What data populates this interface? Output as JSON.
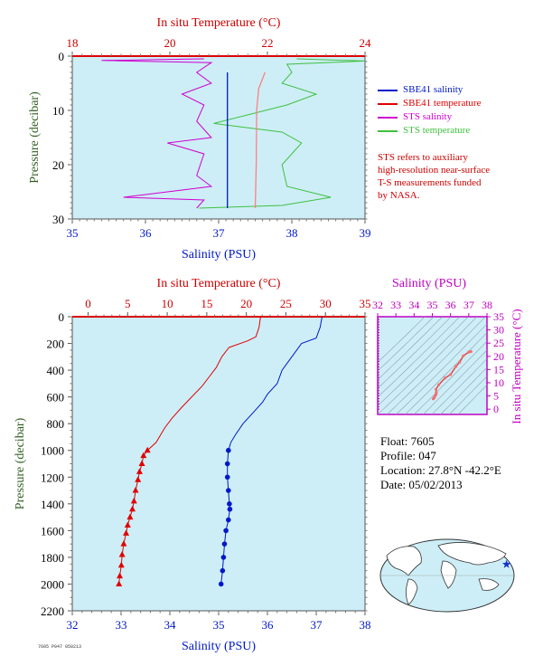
{
  "colors": {
    "panel_bg": "#cdeef7",
    "temp": "#e00000",
    "sal": "#0018c8",
    "sts_sal": "#d000d0",
    "sts_temp": "#40c040",
    "pres_label": "#2e7d32",
    "ts_axis": "#c000c0"
  },
  "top_panel": {
    "top_axis_label": "In situ Temperature (°C)",
    "bottom_axis_label": "Salinity (PSU)",
    "left_axis_label": "Pressure (decibar)",
    "temp_ticks": [
      "18",
      "20",
      "22",
      "24"
    ],
    "sal_ticks": [
      "35",
      "36",
      "37",
      "38",
      "39"
    ],
    "pres_ticks": [
      "0",
      "10",
      "20",
      "30"
    ]
  },
  "legend": [
    {
      "label": "SBE41 salinity",
      "color": "#0018c8"
    },
    {
      "label": "SBE41 temperature",
      "color": "#e00000"
    },
    {
      "label": "STS salinity",
      "color": "#d000d0"
    },
    {
      "label": "STS temperature",
      "color": "#40c040"
    }
  ],
  "note_lines": [
    "STS refers to auxiliary",
    "high-resolution near-surface",
    "T-S measurements funded",
    "by NASA."
  ],
  "main_panel": {
    "top_axis_label": "In situ Temperature (°C)",
    "bottom_axis_label": "Salinity (PSU)",
    "left_axis_label": "Pressure (decibar)",
    "temp_ticks": [
      "0",
      "5",
      "10",
      "15",
      "20",
      "25",
      "30",
      "35"
    ],
    "sal_ticks": [
      "32",
      "33",
      "34",
      "35",
      "36",
      "37",
      "38"
    ],
    "pres_ticks": [
      "0",
      "200",
      "400",
      "600",
      "800",
      "1000",
      "1200",
      "1400",
      "1600",
      "1800",
      "2000",
      "2200"
    ]
  },
  "ts_panel": {
    "top_axis_label": "Salinity (PSU)",
    "right_axis_label": "In situ Temperature (°C)",
    "sal_ticks": [
      "32",
      "33",
      "34",
      "35",
      "36",
      "37",
      "38"
    ],
    "temp_ticks": [
      "0",
      "5",
      "10",
      "15",
      "20",
      "25",
      "30",
      "35"
    ]
  },
  "info": {
    "float_line": "Float:  7605",
    "profile_line": "Profile:  047",
    "location_line": "Location:  27.8°N  -42.2°E",
    "date_line": "Date:  05/02/2013"
  },
  "footer_code": "7605 P047 050213",
  "chart_data": [
    {
      "type": "line",
      "title": "",
      "x_top_label": "In situ Temperature (°C)",
      "x_top_range": [
        18,
        24
      ],
      "x_bottom_label": "Salinity (PSU)",
      "x_bottom_range": [
        35,
        39
      ],
      "ylabel": "Pressure (decibar)",
      "ylim": [
        30,
        0
      ],
      "series": [
        {
          "name": "SBE41 salinity",
          "axis": "salinity",
          "points": [
            [
              37.12,
              3
            ],
            [
              37.12,
              10
            ],
            [
              37.12,
              20
            ],
            [
              37.12,
              28
            ]
          ]
        },
        {
          "name": "SBE41 temperature",
          "axis": "temperature",
          "points": [
            [
              21.95,
              3
            ],
            [
              21.82,
              6
            ],
            [
              21.78,
              10
            ],
            [
              21.77,
              20
            ],
            [
              21.75,
              28
            ]
          ]
        },
        {
          "name": "STS salinity",
          "axis": "salinity",
          "points": [
            [
              36.8,
              0.5
            ],
            [
              35.4,
              0.8
            ],
            [
              36.9,
              1.2
            ],
            [
              36.7,
              3
            ],
            [
              36.9,
              5
            ],
            [
              36.5,
              7
            ],
            [
              36.8,
              9
            ],
            [
              36.7,
              12
            ],
            [
              36.9,
              15
            ],
            [
              36.3,
              16
            ],
            [
              36.8,
              18
            ],
            [
              36.7,
              22
            ],
            [
              36.9,
              24
            ],
            [
              35.7,
              26
            ],
            [
              36.8,
              26.5
            ],
            [
              36.7,
              28
            ]
          ]
        },
        {
          "name": "STS temperature",
          "axis": "temperature",
          "points": [
            [
              22.6,
              0.5
            ],
            [
              24.0,
              0.9
            ],
            [
              22.4,
              1.5
            ],
            [
              22.5,
              3
            ],
            [
              22.3,
              5
            ],
            [
              23.0,
              7
            ],
            [
              22.4,
              9
            ],
            [
              20.9,
              12.4
            ],
            [
              22.3,
              14
            ],
            [
              22.7,
              16
            ],
            [
              22.3,
              20
            ],
            [
              22.4,
              24
            ],
            [
              23.3,
              26
            ],
            [
              22.3,
              27.5
            ],
            [
              20.6,
              28
            ]
          ]
        }
      ]
    },
    {
      "type": "line",
      "title": "",
      "x_top_label": "In situ Temperature (°C)",
      "x_top_range": [
        -2,
        35
      ],
      "x_bottom_label": "Salinity (PSU)",
      "x_bottom_range": [
        32,
        38
      ],
      "ylabel": "Pressure (decibar)",
      "ylim": [
        2200,
        0
      ],
      "series": [
        {
          "name": "",
          "variable": "temperature",
          "color": "#e00000",
          "points": [
            [
              21.8,
              0
            ],
            [
              21.6,
              80
            ],
            [
              21.2,
              150
            ],
            [
              20.2,
              180
            ],
            [
              17.8,
              230
            ],
            [
              16.9,
              300
            ],
            [
              16.2,
              380
            ],
            [
              15.3,
              450
            ],
            [
              14.4,
              520
            ],
            [
              13.1,
              600
            ],
            [
              11.8,
              680
            ],
            [
              10.6,
              760
            ],
            [
              9.7,
              830
            ],
            [
              9.2,
              880
            ],
            [
              8.6,
              940
            ],
            [
              7.5,
              1000
            ],
            [
              7.0,
              1040
            ],
            [
              6.8,
              1100
            ],
            [
              6.5,
              1160
            ],
            [
              6.3,
              1220
            ],
            [
              6.0,
              1300
            ],
            [
              5.8,
              1380
            ],
            [
              5.6,
              1440
            ],
            [
              5.3,
              1500
            ],
            [
              5.0,
              1560
            ],
            [
              4.8,
              1620
            ],
            [
              4.5,
              1700
            ],
            [
              4.3,
              1780
            ],
            [
              4.2,
              1860
            ],
            [
              4.0,
              1940
            ],
            [
              3.9,
              2000
            ]
          ]
        },
        {
          "name": "",
          "variable": "salinity",
          "color": "#0018c8",
          "points": [
            [
              37.12,
              0
            ],
            [
              37.08,
              80
            ],
            [
              37.0,
              160
            ],
            [
              36.7,
              200
            ],
            [
              36.5,
              300
            ],
            [
              36.3,
              400
            ],
            [
              36.2,
              500
            ],
            [
              36.0,
              580
            ],
            [
              35.9,
              640
            ],
            [
              35.7,
              720
            ],
            [
              35.5,
              800
            ],
            [
              35.35,
              880
            ],
            [
              35.25,
              940
            ],
            [
              35.2,
              1000
            ],
            [
              35.18,
              1100
            ],
            [
              35.18,
              1200
            ],
            [
              35.2,
              1300
            ],
            [
              35.22,
              1400
            ],
            [
              35.23,
              1440
            ],
            [
              35.2,
              1520
            ],
            [
              35.15,
              1600
            ],
            [
              35.12,
              1700
            ],
            [
              35.1,
              1800
            ],
            [
              35.08,
              1900
            ],
            [
              35.05,
              2000
            ]
          ]
        }
      ]
    },
    {
      "type": "scatter",
      "title": "",
      "xlabel": "Salinity (PSU)",
      "ylabel": "In situ Temperature (°C)",
      "xlim": [
        32,
        38
      ],
      "ylim": [
        -2,
        35
      ],
      "series": [
        {
          "name": "",
          "color": "#e03030",
          "points": [
            [
              35.05,
              3.9
            ],
            [
              35.1,
              4.3
            ],
            [
              35.15,
              5.0
            ],
            [
              35.2,
              5.6
            ],
            [
              35.22,
              6.3
            ],
            [
              35.2,
              7.5
            ],
            [
              35.35,
              9.2
            ],
            [
              35.7,
              11.8
            ],
            [
              36.0,
              13.1
            ],
            [
              36.3,
              16.2
            ],
            [
              36.5,
              17.8
            ],
            [
              36.7,
              20.2
            ],
            [
              37.0,
              21.6
            ],
            [
              37.12,
              21.8
            ]
          ]
        }
      ]
    }
  ]
}
